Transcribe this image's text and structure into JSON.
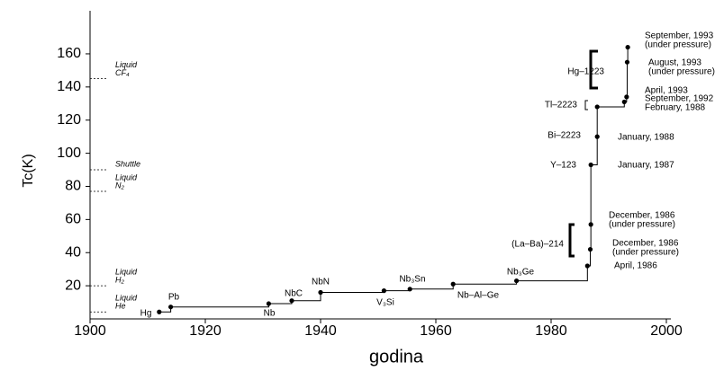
{
  "chart_data": {
    "type": "step",
    "y_label": "Tc(K)",
    "x_label": "godina",
    "xlim": [
      1900,
      2000
    ],
    "ylim": [
      0,
      186
    ],
    "xticks": [
      1900,
      1920,
      1940,
      1960,
      1980,
      2000
    ],
    "yticks": [
      20,
      40,
      60,
      80,
      100,
      120,
      140,
      160
    ],
    "color": "#000000",
    "x": [
      1912,
      1914,
      1931,
      1935,
      1940,
      1951,
      1955.5,
      1963,
      1974,
      1986.3,
      1986.8,
      1986.9,
      1986.9,
      1988,
      1988,
      1992.7,
      1993.1,
      1993.2,
      1993.3
    ],
    "values": [
      4.2,
      7.2,
      9.2,
      11,
      16,
      17,
      18,
      21,
      23,
      32,
      42,
      57,
      93,
      110,
      128,
      131,
      134,
      155,
      164
    ],
    "materials": [
      "Hg",
      "Pb",
      "Nb",
      "NbC",
      "NbN",
      "V₃Si",
      "Nb₃Sn",
      "Nb–Al–Ge",
      "Nb₃Ge",
      null,
      "(La–Ba)–214",
      null,
      "Y–123",
      "Bi–2223",
      "Tl–2223",
      null,
      "Hg–1223",
      null,
      null
    ],
    "dates": [
      null,
      null,
      null,
      null,
      null,
      null,
      null,
      null,
      null,
      [
        "April, 1986"
      ],
      [
        "December, 1986",
        "(under pressure)"
      ],
      [
        "December, 1986",
        "(under pressure)"
      ],
      [
        "January, 1987"
      ],
      [
        "January, 1988"
      ],
      [
        "February, 1988"
      ],
      [
        "September, 1992"
      ],
      [
        "April, 1993"
      ],
      [
        "August, 1993",
        "(under pressure)"
      ],
      [
        "September, 1993",
        "(under pressure)"
      ]
    ],
    "references": [
      {
        "lines": [
          "Liquid",
          "He"
        ],
        "value": 4.2
      },
      {
        "lines": [
          "Liquid",
          "H₂"
        ],
        "value": 20
      },
      {
        "lines": [
          "Liquid",
          "N₂"
        ],
        "value": 77
      },
      {
        "lines": [
          "Shuttle"
        ],
        "value": 90
      },
      {
        "lines": [
          "Liquid",
          "CF₄"
        ],
        "value": 145
      }
    ]
  }
}
